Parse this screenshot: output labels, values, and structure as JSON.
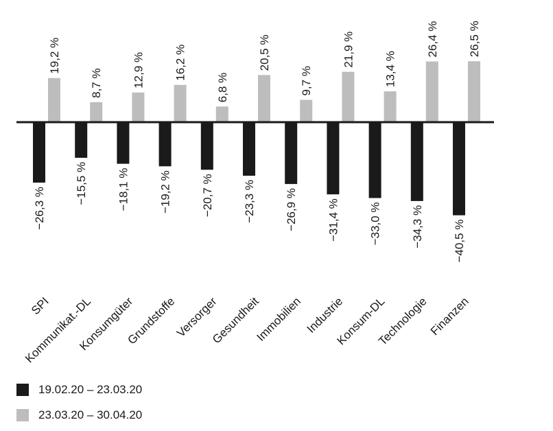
{
  "chart_data": {
    "type": "bar",
    "categories": [
      "SPI",
      "Kommunikat.-DL",
      "Konsumgüter",
      "Grundstoffe",
      "Versorger",
      "Gesundheit",
      "Immobilien",
      "Industrie",
      "Konsum-DL",
      "Technologie",
      "Finanzen"
    ],
    "series": [
      {
        "name": "19.02.20 – 23.03.20",
        "color": "#1a1a1a",
        "values": [
          -26.3,
          -15.5,
          -18.1,
          -19.2,
          -20.7,
          -23.3,
          -26.9,
          -31.4,
          -33.0,
          -34.3,
          -40.5
        ],
        "labels": [
          "−26,3 %",
          "−15,5 %",
          "−18,1 %",
          "−19,2 %",
          "−20,7 %",
          "−23,3 %",
          "−26,9 %",
          "−31,4 %",
          "−33,0 %",
          "−34,3 %",
          "−40,5 %"
        ]
      },
      {
        "name": "23.03.20 – 30.04.20",
        "color": "#bdbdbd",
        "values": [
          19.2,
          8.7,
          12.9,
          16.2,
          6.8,
          20.5,
          9.7,
          21.9,
          13.4,
          26.4,
          26.5
        ],
        "labels": [
          "19,2 %",
          "8,7 %",
          "12,9 %",
          "16,2 %",
          "6,8 %",
          "20,5 %",
          "9,7 %",
          "21,9 %",
          "13,4 %",
          "26,4 %",
          "26,5 %"
        ]
      }
    ],
    "legend_position": "bottom-left",
    "grid": false
  },
  "legend": {
    "items": [
      {
        "label": "19.02.20 – 23.03.20",
        "color": "#1a1a1a"
      },
      {
        "label": "23.03.20 – 30.04.20",
        "color": "#bdbdbd"
      }
    ]
  }
}
